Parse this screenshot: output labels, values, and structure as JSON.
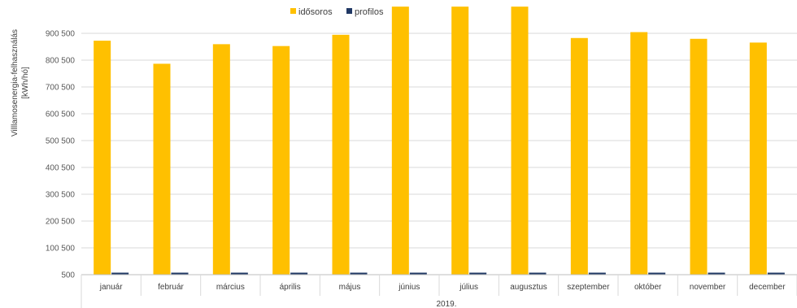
{
  "chart_data": {
    "type": "bar",
    "title": "",
    "ylabel_lines": [
      "Villlamosenergia-felhasználás",
      "[kWh/hó]"
    ],
    "xlabel": "2019.",
    "categories": [
      "január",
      "február",
      "március",
      "április",
      "május",
      "június",
      "július",
      "augusztus",
      "szeptember",
      "október",
      "november",
      "december"
    ],
    "series": [
      {
        "name": "idősoros",
        "color": "#FFC000",
        "values": [
          873000,
          787000,
          860000,
          853000,
          895000,
          1000000,
          1000000,
          1000000,
          883000,
          905000,
          880000,
          866000
        ]
      },
      {
        "name": "profilos",
        "color": "#203864",
        "values": [
          8000,
          8000,
          8000,
          8000,
          8000,
          8000,
          8000,
          8000,
          8000,
          8000,
          8000,
          8000
        ]
      }
    ],
    "yticks": [
      500,
      100500,
      200500,
      300500,
      400500,
      500500,
      600500,
      700500,
      800500,
      900500
    ],
    "ytick_labels": [
      "500",
      "100 500",
      "200 500",
      "300 500",
      "400 500",
      "500 500",
      "600 500",
      "700 500",
      "800 500",
      "900 500"
    ],
    "ylim": [
      500,
      1000500
    ],
    "grid": true,
    "legend_position": "top"
  }
}
